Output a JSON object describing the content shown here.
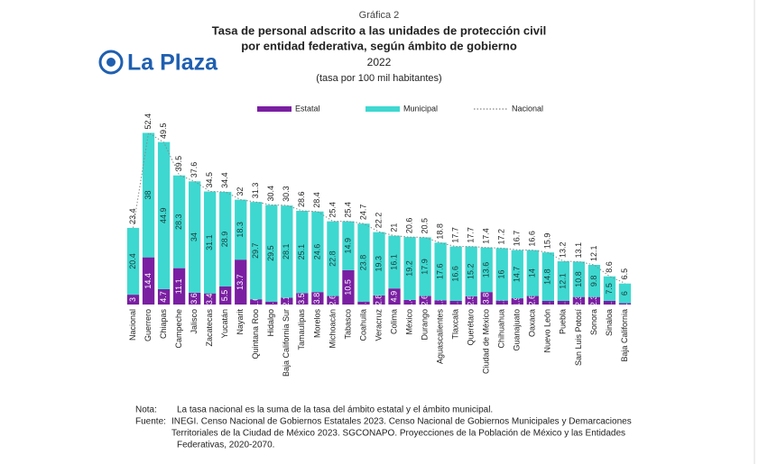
{
  "logo": "La Plaza",
  "chart_data": {
    "type": "bar",
    "stacked": true,
    "kicker": "Gráfica 2",
    "title": [
      "Tasa de personal adscrito a las unidades de protección civil",
      "por entidad federativa, según ámbito de gobierno"
    ],
    "subtitle": "2022",
    "units": "(tasa por 100 mil habitantes)",
    "categories": [
      "Nacional",
      "Guerrero",
      "Chiapas",
      "Campeche",
      "Jalisco",
      "Zacatecas",
      "Yucatán",
      "Nayarit",
      "Quintana Roo",
      "Hidalgo",
      "Baja California Sur",
      "Tamaulipas",
      "Morelos",
      "Michoacán",
      "Tabasco",
      "Coahuila",
      "Veracruz",
      "Colima",
      "México",
      "Durango",
      "Aguascalientes",
      "Tlaxcala",
      "Querétaro",
      "Ciudad de México",
      "Chihuahua",
      "Guanajuato",
      "Oaxaca",
      "Nuevo León",
      "Puebla",
      "San Luis Potosí",
      "Sonora",
      "Sinaloa",
      "Baja California"
    ],
    "series": [
      {
        "name": "Estatal",
        "type": "bar",
        "color": "#7a1fa2",
        "values": [
          3.0,
          14.4,
          4.7,
          11.1,
          3.6,
          3.4,
          5.5,
          13.7,
          1.6,
          0.9,
          2.1,
          3.5,
          3.8,
          2.6,
          10.5,
          0.9,
          2.8,
          4.9,
          1.4,
          2.6,
          1.3,
          1.1,
          2.5,
          3.8,
          1.2,
          1.9,
          2.6,
          1.1,
          1.1,
          2.3,
          2.3,
          1.1,
          0.4
        ]
      },
      {
        "name": "Municipal",
        "type": "bar",
        "color": "#3ed8d0",
        "values": [
          20.4,
          38.0,
          44.9,
          28.3,
          34.0,
          31.1,
          28.9,
          18.3,
          29.7,
          29.5,
          28.1,
          25.1,
          24.6,
          22.8,
          14.9,
          23.8,
          19.3,
          16.1,
          19.2,
          17.9,
          17.6,
          16.6,
          15.2,
          13.6,
          16.0,
          14.7,
          14.0,
          14.8,
          12.1,
          10.8,
          9.8,
          7.5,
          6.0
        ]
      },
      {
        "name": "Nacional",
        "type": "line",
        "color": "#888888",
        "values": [
          23.4,
          52.4,
          49.5,
          39.5,
          37.6,
          34.5,
          34.4,
          32.0,
          31.3,
          30.4,
          30.3,
          28.6,
          28.4,
          25.4,
          25.4,
          24.7,
          22.2,
          21.0,
          20.6,
          20.5,
          18.8,
          17.7,
          17.7,
          17.4,
          17.2,
          16.7,
          16.6,
          15.9,
          13.2,
          13.1,
          12.1,
          8.6,
          6.5
        ]
      }
    ],
    "ylim": [
      0,
      55
    ],
    "note_label": "Nota:",
    "note": "La tasa nacional es la suma de la tasa del ámbito estatal y el ámbito municipal.",
    "source_label": "Fuente:",
    "source": [
      "INEGI. Censo Nacional de Gobiernos Estatales 2023. Censo Nacional de Gobiernos Municipales y Demarcaciones",
      "Territoriales de la Ciudad de México 2023. SGCONAPO. Proyecciones de la Población de México y las Entidades",
      "Federativas, 2020-2070."
    ]
  }
}
